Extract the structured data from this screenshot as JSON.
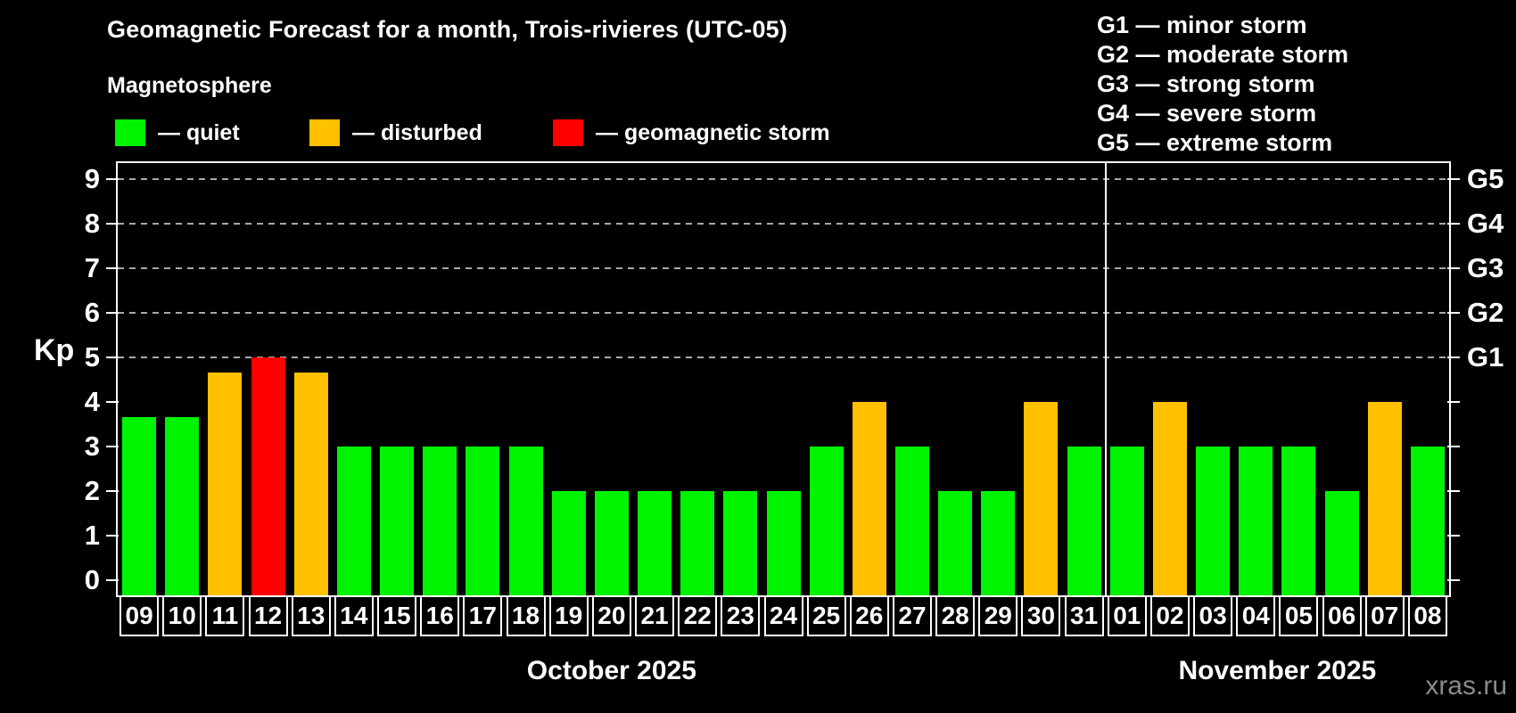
{
  "header": {
    "title": "Geomagnetic Forecast for a month, Trois-rivieres (UTC-05)",
    "subtitle": "Magnetosphere"
  },
  "legend": {
    "items": [
      {
        "status": "quiet",
        "color": "#00f400",
        "label": "— quiet"
      },
      {
        "status": "disturbed",
        "color": "#ffc000",
        "label": "— disturbed"
      },
      {
        "status": "storm",
        "color": "#ff0000",
        "label": "— geomagnetic storm"
      }
    ]
  },
  "storm_scale": {
    "items": [
      {
        "code": "G1",
        "label": "G1 — minor storm"
      },
      {
        "code": "G2",
        "label": "G2 — moderate storm"
      },
      {
        "code": "G3",
        "label": "G3 — strong storm"
      },
      {
        "code": "G4",
        "label": "G4 — severe storm"
      },
      {
        "code": "G5",
        "label": "G5 — extreme storm"
      }
    ]
  },
  "watermark": "xras.ru",
  "chart_data": {
    "type": "bar",
    "ylabel": "Kp",
    "ylim": [
      0,
      9.4
    ],
    "y_ticks": [
      0,
      1,
      2,
      3,
      4,
      5,
      6,
      7,
      8,
      9
    ],
    "grid": "dashed horizontal lines at Kp 5,6,7,8,9",
    "legend_position": "top-left",
    "right_axis": [
      {
        "kp": 5,
        "label": "G1"
      },
      {
        "kp": 6,
        "label": "G2"
      },
      {
        "kp": 7,
        "label": "G3"
      },
      {
        "kp": 8,
        "label": "G4"
      },
      {
        "kp": 9,
        "label": "G5"
      }
    ],
    "bar_colors": {
      "quiet": "#00f400",
      "disturbed": "#ffc000",
      "storm": "#ff0000"
    },
    "categories": [
      "09",
      "10",
      "11",
      "12",
      "13",
      "14",
      "15",
      "16",
      "17",
      "18",
      "19",
      "20",
      "21",
      "22",
      "23",
      "24",
      "25",
      "26",
      "27",
      "28",
      "29",
      "30",
      "31",
      "01",
      "02",
      "03",
      "04",
      "05",
      "06",
      "07",
      "08"
    ],
    "values": [
      3.67,
      3.67,
      4.67,
      5,
      4.67,
      3,
      3,
      3,
      3,
      3,
      2,
      2,
      2,
      2,
      2,
      2,
      3,
      4,
      3,
      2,
      2,
      4,
      3,
      3,
      4,
      3,
      3,
      3,
      2,
      4,
      3
    ],
    "statuses": [
      "quiet",
      "quiet",
      "disturbed",
      "storm",
      "disturbed",
      "quiet",
      "quiet",
      "quiet",
      "quiet",
      "quiet",
      "quiet",
      "quiet",
      "quiet",
      "quiet",
      "quiet",
      "quiet",
      "quiet",
      "disturbed",
      "quiet",
      "quiet",
      "quiet",
      "disturbed",
      "quiet",
      "quiet",
      "disturbed",
      "quiet",
      "quiet",
      "quiet",
      "quiet",
      "disturbed",
      "quiet"
    ],
    "months": [
      {
        "label": "October 2025",
        "start": 0,
        "count": 23
      },
      {
        "label": "November 2025",
        "start": 23,
        "count": 8
      }
    ],
    "month_separator_after_index": 22
  }
}
